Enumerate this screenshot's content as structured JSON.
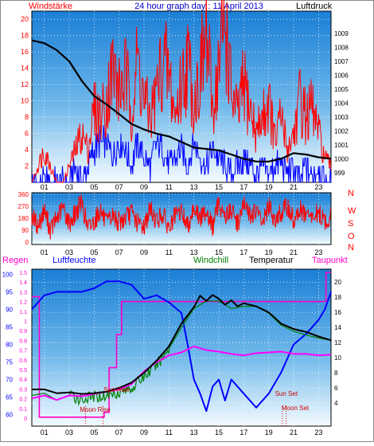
{
  "colors": {
    "windspeed": "#ff0000",
    "gust": "#0000ff",
    "pressure": "#000000",
    "rain": "#ff00c8",
    "humidity": "#0000ff",
    "windchill": "#008000",
    "temperature": "#000000",
    "dewpoint": "#ff00ff",
    "marker": "#d00000",
    "frame": "#ffffff"
  },
  "chart_data": [
    {
      "id": "wind_pressure",
      "type": "line",
      "title": "24 hour graph day : 11 April 2013",
      "left_label": "Windstärke",
      "right_label": "Luftdruck",
      "x_ticks": [
        "01",
        "03",
        "05",
        "07",
        "09",
        "11",
        "13",
        "15",
        "17",
        "19",
        "21",
        "23"
      ],
      "xlim": [
        0,
        24
      ],
      "ylim_left": [
        0,
        21
      ],
      "y_ticks_left": [
        "2",
        "4",
        "6",
        "8",
        "10",
        "12",
        "14",
        "16",
        "18",
        "20"
      ],
      "ylim_right": [
        998.3,
        1010.6
      ],
      "y_ticks_right": [
        "999",
        "1000",
        "1001",
        "1002",
        "1003",
        "1004",
        "1005",
        "1006",
        "1007",
        "1008",
        "1009"
      ],
      "series": [
        {
          "key": "pressure",
          "axis": "right",
          "x": [
            0,
            1,
            2,
            3,
            4,
            5,
            6,
            7,
            8,
            9,
            10,
            11,
            12,
            13,
            14,
            15,
            16,
            17,
            18,
            19,
            20,
            21,
            22,
            23,
            24
          ],
          "values": [
            1008.5,
            1008.3,
            1007.8,
            1007.0,
            1005.6,
            1004.5,
            1003.9,
            1003.2,
            1002.5,
            1002.1,
            1001.8,
            1001.6,
            1001.2,
            1000.8,
            1000.7,
            1000.6,
            1000.3,
            1000.0,
            999.8,
            999.8,
            1000.0,
            1000.4,
            1000.3,
            1000.1,
            1000.0
          ]
        },
        {
          "key": "windspeed",
          "axis": "left",
          "x": [
            0,
            0.5,
            1,
            1.5,
            2,
            2.5,
            3,
            3.5,
            4,
            4.5,
            5,
            5.5,
            6,
            6.5,
            7,
            7.5,
            8,
            8.5,
            9,
            9.5,
            10,
            10.5,
            11,
            11.5,
            12,
            12.5,
            13,
            13.5,
            14,
            14.5,
            15,
            15.5,
            16,
            16.5,
            17,
            17.5,
            18,
            18.5,
            19,
            19.5,
            20,
            20.5,
            21,
            21.5,
            22,
            22.5,
            23,
            23.5,
            24
          ],
          "values": [
            0,
            2,
            4,
            2,
            0,
            0,
            2,
            4,
            6,
            4,
            9,
            8,
            10,
            14,
            11,
            13,
            9,
            15,
            10,
            8,
            11,
            15,
            13,
            8,
            12,
            15,
            10,
            13,
            18,
            9,
            14,
            20,
            11,
            8,
            12,
            9,
            6,
            8,
            10,
            5,
            8,
            4,
            6,
            10,
            8,
            9,
            6,
            3,
            2
          ]
        },
        {
          "key": "gust",
          "axis": "left",
          "x": [
            0,
            0.5,
            1,
            1.5,
            2,
            2.5,
            3,
            3.5,
            4,
            4.5,
            5,
            5.5,
            6,
            6.5,
            7,
            7.5,
            8,
            8.5,
            9,
            9.5,
            10,
            10.5,
            11,
            11.5,
            12,
            12.5,
            13,
            13.5,
            14,
            14.5,
            15,
            15.5,
            16,
            16.5,
            17,
            17.5,
            18,
            18.5,
            19,
            19.5,
            20,
            20.5,
            21,
            21.5,
            22,
            22.5,
            23,
            23.5,
            24
          ],
          "values": [
            0,
            0,
            0,
            0,
            0,
            0,
            0,
            2,
            0,
            2,
            4,
            5,
            5,
            3,
            5,
            4,
            2,
            5,
            3,
            2,
            5,
            4,
            2,
            3,
            4,
            2,
            5,
            3,
            2,
            4,
            3,
            2,
            1,
            2,
            3,
            2,
            1,
            2,
            1,
            2,
            2,
            1,
            2,
            0,
            2,
            1,
            2,
            0,
            0
          ]
        }
      ]
    },
    {
      "id": "wind_direction",
      "type": "line",
      "x_ticks": [
        "01",
        "03",
        "05",
        "07",
        "09",
        "11",
        "13",
        "15",
        "17",
        "19",
        "21",
        "23"
      ],
      "xlim": [
        0,
        24
      ],
      "ylim": [
        0,
        360
      ],
      "y_ticks": [
        "0",
        "90",
        "180",
        "270",
        "360"
      ],
      "direction_labels": [
        "N",
        "W",
        "S",
        "O",
        "N"
      ],
      "series": [
        {
          "key": "direction",
          "x": [
            0,
            0.5,
            1,
            1.5,
            2,
            2.5,
            3,
            3.5,
            4,
            4.5,
            5,
            5.5,
            6,
            6.5,
            7,
            7.5,
            8,
            8.5,
            9,
            9.5,
            10,
            10.5,
            11,
            11.5,
            12,
            12.5,
            13,
            13.5,
            14,
            14.5,
            15,
            15.5,
            16,
            16.5,
            17,
            17.5,
            18,
            18.5,
            19,
            19.5,
            20,
            20.5,
            21,
            21.5,
            22,
            22.5,
            23,
            23.5,
            24
          ],
          "values": [
            200,
            120,
            240,
            90,
            180,
            260,
            140,
            220,
            300,
            100,
            160,
            240,
            130,
            200,
            150,
            180,
            220,
            140,
            120,
            250,
            160,
            210,
            100,
            190,
            230,
            120,
            270,
            170,
            250,
            110,
            300,
            190,
            240,
            140,
            280,
            200,
            230,
            150,
            260,
            180,
            210,
            270,
            160,
            240,
            200,
            180,
            220,
            150,
            190
          ]
        }
      ]
    },
    {
      "id": "climate",
      "type": "line",
      "header_labels": {
        "rain": "Regen",
        "humidity": "Luftfeuchte",
        "windchill": "Windchill",
        "temperature": "Temperatur",
        "dewpoint": "Taupunkt"
      },
      "x_ticks": [
        "01",
        "03",
        "05",
        "07",
        "09",
        "11",
        "13",
        "15",
        "17",
        "19",
        "21",
        "23"
      ],
      "xlim": [
        0,
        24
      ],
      "ylim_rain": [
        0,
        1.5
      ],
      "y_ticks_rain": [
        "0",
        "0.1",
        "0.2",
        "0.3",
        "0.4",
        "0.5",
        "0.6",
        "0.7",
        "0.8",
        "0.9",
        "1",
        "1.1",
        "1.2",
        "1.3",
        "1.4",
        "1.5"
      ],
      "ylim_humidity": [
        59,
        101
      ],
      "y_ticks_humidity": [
        "60",
        "65",
        "70",
        "75",
        "80",
        "85",
        "90",
        "95",
        "100"
      ],
      "ylim_temperature": [
        2,
        21.5
      ],
      "y_ticks_temperature": [
        "4",
        "6",
        "8",
        "10",
        "12",
        "14",
        "16",
        "18",
        "20"
      ],
      "annotations": [
        {
          "text": "Moon Rise",
          "x": 4.3
        },
        {
          "text": "Sun Rise",
          "x": 5.7
        },
        {
          "text": "Moon Set",
          "x": 20.1
        },
        {
          "text": "Sun Set",
          "x": 20.4
        }
      ],
      "series": [
        {
          "key": "temperature",
          "axis": "temperature",
          "x": [
            0,
            1,
            2,
            3,
            4,
            5,
            6,
            7,
            8,
            9,
            10,
            11,
            12,
            13,
            13.5,
            14,
            14.5,
            15,
            15.5,
            16,
            16.5,
            17,
            18,
            19,
            20,
            21,
            22,
            23,
            24
          ],
          "values": [
            5.8,
            5.8,
            5.3,
            5.4,
            5.2,
            5.3,
            5.5,
            6.0,
            6.7,
            8.0,
            9.6,
            11.5,
            14.5,
            16.7,
            18.2,
            17.5,
            18.3,
            17.8,
            17.0,
            17.6,
            16.8,
            17.2,
            16.8,
            16.0,
            14.5,
            13.8,
            13.4,
            12.8,
            12.3
          ]
        },
        {
          "key": "windchill",
          "axis": "temperature",
          "x": [
            0,
            1,
            2,
            3,
            4,
            5,
            6,
            7,
            8,
            9,
            10,
            11,
            12,
            13,
            14,
            15,
            16,
            17,
            18,
            19,
            20,
            21,
            22,
            23,
            24
          ],
          "values": [
            5.0,
            5.3,
            4.4,
            5.0,
            4.5,
            4.8,
            5.0,
            5.5,
            6.0,
            7.5,
            9.0,
            11.2,
            14.0,
            16.5,
            17.5,
            17.5,
            16.5,
            16.8,
            16.8,
            15.9,
            14.3,
            13.5,
            13.0,
            12.6,
            12.3
          ]
        },
        {
          "key": "dewpoint",
          "axis": "temperature",
          "x": [
            0,
            1,
            2,
            3,
            4,
            5,
            6,
            7,
            8,
            9,
            10,
            11,
            12,
            13,
            14,
            15,
            16,
            17,
            18,
            19,
            20,
            21,
            22,
            23,
            24
          ],
          "values": [
            4.6,
            5.0,
            4.4,
            5.0,
            4.9,
            5.2,
            5.5,
            5.8,
            6.5,
            8.2,
            9.4,
            10.3,
            10.7,
            11.5,
            11.0,
            10.8,
            10.5,
            10.3,
            10.6,
            10.7,
            10.8,
            10.5,
            10.5,
            10.3,
            10.4
          ]
        },
        {
          "key": "humidity",
          "axis": "humidity",
          "x": [
            0,
            0.5,
            1,
            2,
            3,
            4,
            5,
            6,
            7,
            8,
            9,
            10,
            11,
            12,
            12.5,
            13,
            13.5,
            14,
            14.5,
            15,
            15.5,
            16,
            17,
            18,
            19,
            20,
            21,
            22,
            23,
            23.5,
            24
          ],
          "values": [
            90,
            92,
            94,
            95,
            95,
            95,
            96,
            98,
            98,
            97,
            93,
            94,
            92,
            89,
            80,
            70,
            66,
            61,
            68,
            70,
            64,
            70,
            66,
            62,
            66,
            72,
            80,
            83,
            87,
            90,
            95
          ]
        },
        {
          "key": "rain",
          "axis": "rain",
          "x": [
            0,
            0.6,
            0.6,
            5.8,
            5.8,
            6.2,
            6.2,
            6.8,
            6.8,
            7.2,
            7.2,
            23.6,
            23.6,
            24
          ],
          "values": [
            1.25,
            1.25,
            0.01,
            0.01,
            0.06,
            0.06,
            0.52,
            0.52,
            0.86,
            0.86,
            1.2,
            1.2,
            1.5,
            1.5
          ]
        }
      ]
    }
  ]
}
